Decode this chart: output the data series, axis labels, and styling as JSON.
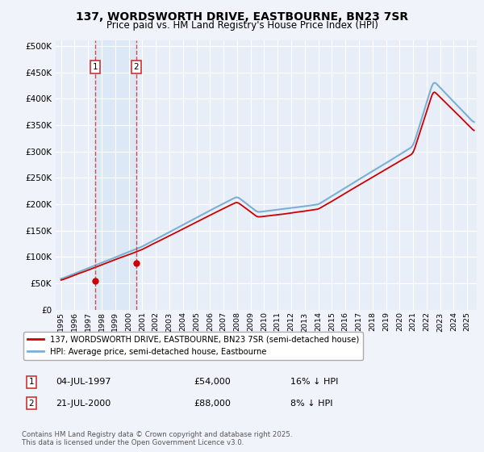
{
  "title_line1": "137, WORDSWORTH DRIVE, EASTBOURNE, BN23 7SR",
  "title_line2": "Price paid vs. HM Land Registry's House Price Index (HPI)",
  "background_color": "#f0f4fa",
  "plot_bg_color": "#e8eef8",
  "sale1_date": "04-JUL-1997",
  "sale1_price": 54000,
  "sale1_label": "1",
  "sale1_hpi_diff": "16% ↓ HPI",
  "sale2_date": "21-JUL-2000",
  "sale2_price": 88000,
  "sale2_label": "2",
  "sale2_hpi_diff": "8% ↓ HPI",
  "legend_red": "137, WORDSWORTH DRIVE, EASTBOURNE, BN23 7SR (semi-detached house)",
  "legend_blue": "HPI: Average price, semi-detached house, Eastbourne",
  "footer": "Contains HM Land Registry data © Crown copyright and database right 2025.\nThis data is licensed under the Open Government Licence v3.0.",
  "red_color": "#cc0000",
  "blue_color": "#7bafd4",
  "shade_color": "#dce8f5",
  "dashed_color": "#cc3333",
  "ylim": [
    0,
    510000
  ],
  "yticks": [
    0,
    50000,
    100000,
    150000,
    200000,
    250000,
    300000,
    350000,
    400000,
    450000,
    500000
  ],
  "ytick_labels": [
    "£0",
    "£50K",
    "£100K",
    "£150K",
    "£200K",
    "£250K",
    "£300K",
    "£350K",
    "£400K",
    "£450K",
    "£500K"
  ],
  "sale1_x": 1997.5,
  "sale2_x": 2000.54
}
